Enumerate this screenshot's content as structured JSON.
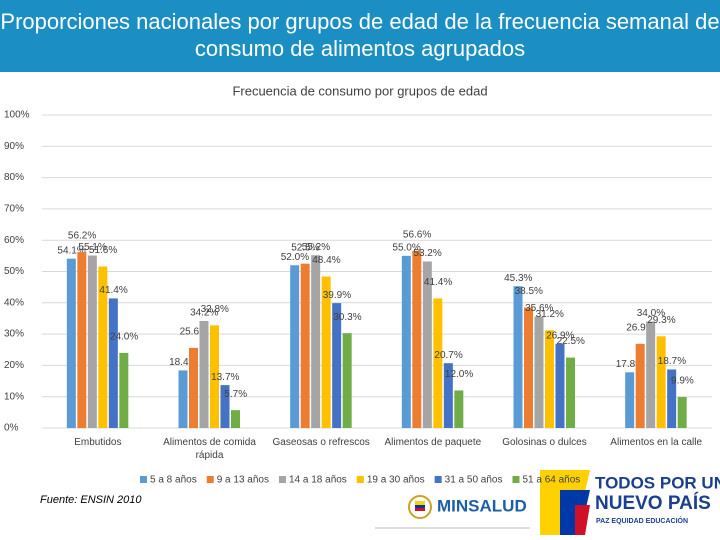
{
  "header": {
    "title": "Proporciones nacionales por grupos de edad de la frecuencia semanal de consumo de alimentos agrupados"
  },
  "chart_data": {
    "type": "bar",
    "title": "Frecuencia de consumo por grupos de edad",
    "categories": [
      "Embutidos",
      "Alimentos de comida rápida",
      "Gaseosas o refrescos",
      "Alimentos de paquete",
      "Golosinas o dulces",
      "Alimentos en la calle"
    ],
    "series": [
      {
        "name": "5 a 8 años",
        "color": "#5b9bd5",
        "values": [
          54.1,
          18.4,
          52.0,
          55.0,
          45.3,
          17.8
        ],
        "value_labels": [
          "54.1%",
          "18.4%",
          "52.0%",
          "55.0%",
          "45.3%",
          "17.8%"
        ]
      },
      {
        "name": "9 a 13 años",
        "color": "#ed7d31",
        "values": [
          56.2,
          25.6,
          52.5,
          56.6,
          38.5,
          26.9
        ],
        "value_labels": [
          "56.2%",
          "25.6%",
          "52.5%",
          "56.6%",
          "38.5%",
          "26.9%"
        ]
      },
      {
        "name": "14 a 18 años",
        "color": "#a5a5a5",
        "values": [
          55.1,
          34.2,
          55.2,
          53.2,
          35.6,
          34.0
        ],
        "value_labels": [
          "55.1%",
          "34.2%",
          "55.2%",
          "53.2%",
          "35.6%",
          "34.0%"
        ]
      },
      {
        "name": "19 a 30 años",
        "color": "#ffc000",
        "values": [
          51.6,
          32.8,
          48.4,
          41.4,
          31.2,
          29.3
        ],
        "value_labels": [
          "51.6%",
          "32.8%",
          "48.4%",
          "41.4%",
          "31.2%",
          "29.3%"
        ]
      },
      {
        "name": "31 a 50 años",
        "color": "#4472c4",
        "values": [
          41.4,
          13.7,
          39.9,
          20.7,
          26.9,
          18.7
        ],
        "value_labels": [
          "41.4%",
          "13.7%",
          "39.9%",
          "20.7%",
          "26.9%",
          "18.7%"
        ]
      },
      {
        "name": "51 a 64 años",
        "color": "#70ad47",
        "values": [
          24.0,
          5.7,
          30.3,
          12.0,
          22.5,
          9.9
        ],
        "value_labels": [
          "24.0%",
          "5.7%",
          "30.3%",
          "12.0%",
          "22.5%",
          "9.9%"
        ]
      }
    ],
    "ylim": [
      0,
      100
    ],
    "yticks": [
      {
        "value": 0,
        "label": "0%"
      },
      {
        "value": 10,
        "label": "10%"
      },
      {
        "value": 20,
        "label": "20%"
      },
      {
        "value": 30,
        "label": "30%"
      },
      {
        "value": 40,
        "label": "40%"
      },
      {
        "value": 50,
        "label": "50%"
      },
      {
        "value": 60,
        "label": "60%"
      },
      {
        "value": 70,
        "label": "70%"
      },
      {
        "value": 80,
        "label": "80%"
      },
      {
        "value": 90,
        "label": "90%"
      },
      {
        "value": 100,
        "label": "100%"
      }
    ],
    "grid": true,
    "legend": "bottom"
  },
  "footer": {
    "source": "Fuente: ENSIN 2010",
    "logo": "MINSALUD",
    "slogan_top": "TODOS POR UN",
    "slogan_bottom": "NUEVO PAÍS",
    "tagline": "PAZ  EQUIDAD  EDUCACIÓN"
  }
}
